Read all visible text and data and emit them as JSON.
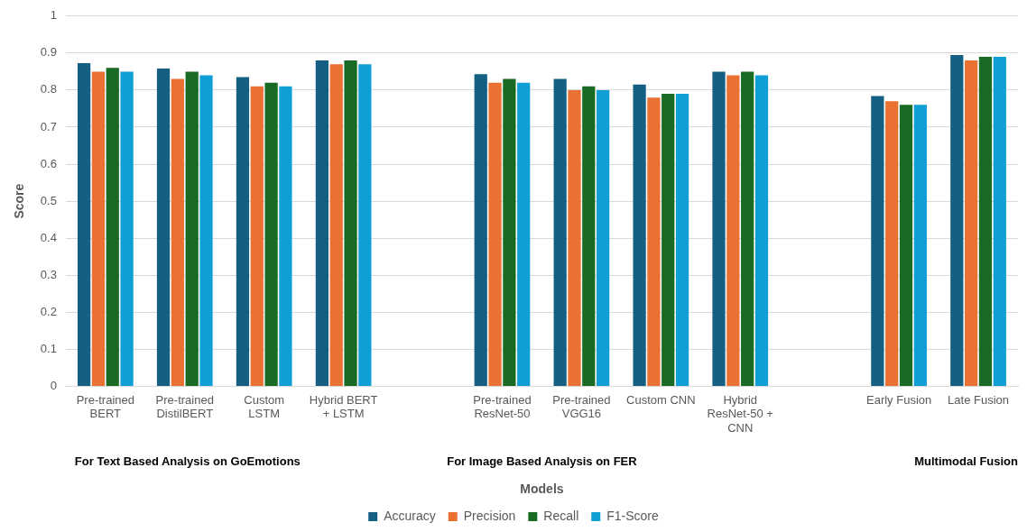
{
  "chart_data": {
    "type": "bar",
    "categories": [
      "Pre-trained\nBERT",
      "Pre-trained\nDistilBERT",
      "Custom\nLSTM",
      "Hybrid BERT\n+ LSTM",
      null,
      "Pre-trained\nResNet-50",
      "Pre-trained\nVGG16",
      "Custom CNN",
      "Hybrid\nResNet-50 +\nCNN",
      null,
      "Early Fusion",
      "Late Fusion"
    ],
    "series": [
      {
        "name": "Accuracy",
        "color": "#156082",
        "values": [
          0.873,
          0.858,
          0.835,
          0.88,
          null,
          0.843,
          0.83,
          0.815,
          0.85,
          null,
          0.784,
          0.895
        ]
      },
      {
        "name": "Precision",
        "color": "#e97132",
        "values": [
          0.85,
          0.83,
          0.81,
          0.87,
          null,
          0.82,
          0.8,
          0.78,
          0.84,
          null,
          0.77,
          0.88
        ]
      },
      {
        "name": "Recall",
        "color": "#196b24",
        "values": [
          0.86,
          0.85,
          0.82,
          0.88,
          null,
          0.83,
          0.81,
          0.79,
          0.85,
          null,
          0.76,
          0.89
        ]
      },
      {
        "name": "F1-Score",
        "color": "#0f9ed5",
        "values": [
          0.85,
          0.84,
          0.81,
          0.87,
          null,
          0.82,
          0.8,
          0.79,
          0.84,
          null,
          0.76,
          0.89
        ]
      }
    ],
    "xlabel": "Models",
    "ylabel": "Score",
    "ylim": [
      0,
      1
    ],
    "yticks": [
      0,
      0.1,
      0.2,
      0.3,
      0.4,
      0.5,
      0.6,
      0.7,
      0.8,
      0.9,
      1
    ],
    "annotations": [
      "For Text Based Analysis on GoEmotions",
      "For Image Based Analysis on FER",
      "Multimodal Fusion"
    ],
    "grid": "y",
    "legend": "bottom"
  }
}
